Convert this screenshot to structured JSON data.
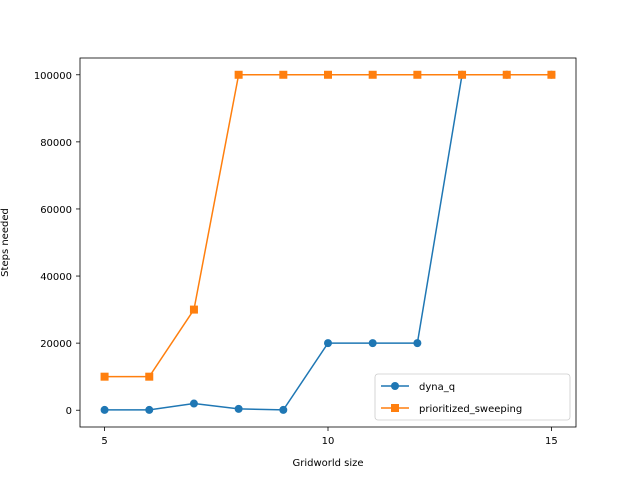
{
  "chart_data": {
    "type": "line",
    "xlabel": "Gridworld size",
    "ylabel": "Steps needed",
    "xlim": [
      4.45,
      15.55
    ],
    "ylim": [
      -5000,
      105000
    ],
    "xticks": [
      5,
      10,
      15
    ],
    "yticks": [
      0,
      20000,
      40000,
      60000,
      80000,
      100000
    ],
    "grid": false,
    "legend_position": "lower right",
    "x": [
      5,
      6,
      7,
      8,
      9,
      10,
      11,
      12,
      13,
      14,
      15
    ],
    "series": [
      {
        "name": "dyna_q",
        "color": "#1f77b4",
        "marker": "circle",
        "values": [
          100,
          100,
          2000,
          400,
          100,
          20000,
          20000,
          20000,
          100000,
          100000,
          100000
        ]
      },
      {
        "name": "prioritized_sweeping",
        "color": "#ff7f0e",
        "marker": "square",
        "values": [
          10000,
          10000,
          30000,
          100000,
          100000,
          100000,
          100000,
          100000,
          100000,
          100000,
          100000
        ]
      }
    ]
  }
}
